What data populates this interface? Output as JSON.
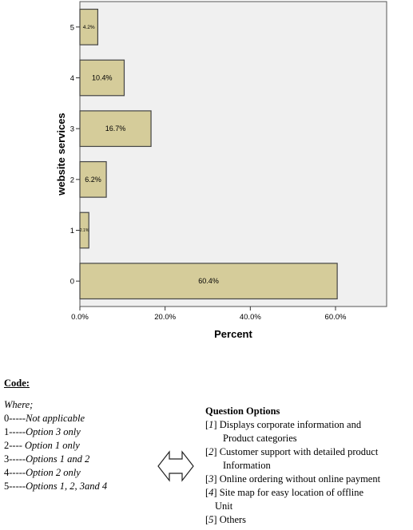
{
  "chart_data": {
    "type": "bar",
    "orientation": "horizontal",
    "categories": [
      "0",
      "1",
      "2",
      "3",
      "4",
      "5"
    ],
    "values": [
      60.4,
      2.1,
      6.2,
      16.7,
      10.4,
      4.2
    ],
    "data_labels": [
      "60.4%",
      "2.1%",
      "6.2%",
      "16.7%",
      "10.4%",
      "4.2%"
    ],
    "xlabel": "Percent",
    "ylabel": "website services",
    "xlim": [
      0,
      72
    ],
    "x_ticks": [
      0,
      20,
      40,
      60
    ],
    "x_tick_labels": [
      "0.0%",
      "20.0%",
      "40.0%",
      "60.0%"
    ],
    "grid": false,
    "colors": {
      "bar_fill": "#d5cc9a",
      "bar_stroke": "#444444",
      "plot_bg": "#f0f0f0"
    }
  },
  "code": {
    "title": "Code:",
    "where": "Where;",
    "lines": [
      {
        "num": "0-----",
        "text": "Not applicable"
      },
      {
        "num": "1-----",
        "text": "Option 3 only"
      },
      {
        "num": "2---- ",
        "text": "Option 1 only"
      },
      {
        "num": "3-----",
        "text": "Options 1 and 2"
      },
      {
        "num": "4-----",
        "text": "Option 2 only"
      },
      {
        "num": "5-----",
        "text": "Options 1, 2, 3and 4"
      }
    ]
  },
  "arrow_icon": "double-arrow-icon",
  "options": {
    "title": "Question Options",
    "items": [
      {
        "num": "1",
        "line1": "Displays corporate information  and",
        "line2": "Product categories"
      },
      {
        "num": "2",
        "line1": "Customer support with detailed product",
        "line2": "Information"
      },
      {
        "num": "3",
        "line1": "Online ordering without online payment",
        "line2": ""
      },
      {
        "num": "4",
        "line1": "Site map for easy location  of offline",
        "line2": "Unit"
      },
      {
        "num": "5",
        "line1": "Others",
        "line2": ""
      }
    ]
  }
}
